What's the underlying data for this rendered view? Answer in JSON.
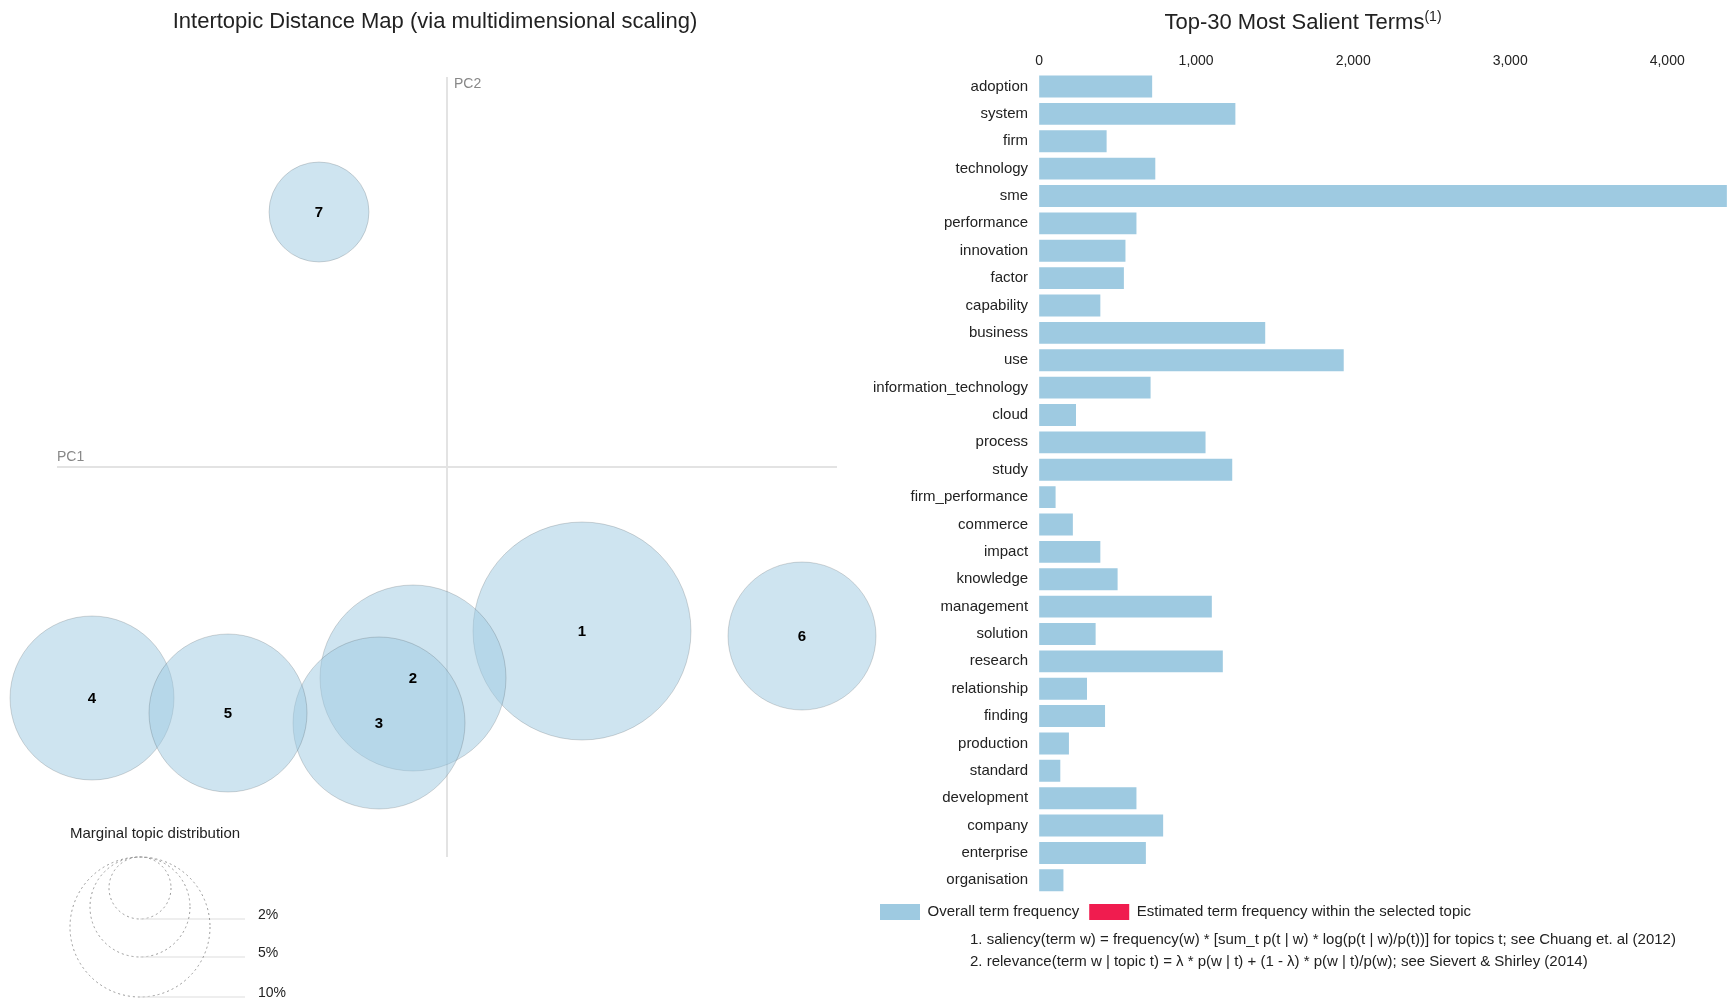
{
  "chart_data": [
    {
      "type": "other",
      "title": "Intertopic Distance Map (via multidimensional scaling)",
      "xlabel": "PC1",
      "ylabel": "PC2",
      "legend_title": "Marginal topic distribution",
      "annotations": [
        "1",
        "2",
        "3",
        "4",
        "5",
        "6",
        "7",
        "2%",
        "5%",
        "10%"
      ]
    },
    {
      "type": "bar",
      "orientation": "horizontal",
      "title": "Top-30 Most Salient Terms$^{(1)}$",
      "legend": "bottom",
      "categories": [
        "adoption",
        "system",
        "firm",
        "technology",
        "sme",
        "performance",
        "innovation",
        "factor",
        "capability",
        "business",
        "use",
        "information_technology",
        "cloud",
        "process",
        "study",
        "firm_performance",
        "commerce",
        "impact",
        "knowledge",
        "management",
        "solution",
        "research",
        "relationship",
        "finding",
        "production",
        "standard",
        "development",
        "company",
        "enterprise",
        "organisation"
      ],
      "series": [
        {
          "name": "Overall term frequency",
          "color": "#9ecae1",
          "values": [
            720,
            1250,
            430,
            740,
            4380,
            620,
            550,
            540,
            390,
            1440,
            1940,
            710,
            235,
            1060,
            1230,
            105,
            215,
            390,
            500,
            1100,
            360,
            1170,
            305,
            420,
            190,
            135,
            620,
            790,
            680,
            155
          ]
        },
        {
          "name": "Estimated term frequency within the selected topic",
          "color": "#f01c4f",
          "values": [
            null,
            null,
            null,
            null,
            null,
            null,
            null,
            null,
            null,
            null,
            null,
            null,
            null,
            null,
            null,
            null,
            null,
            null,
            null,
            null,
            null,
            null,
            null,
            null,
            null,
            null,
            null,
            null,
            null,
            null
          ]
        }
      ],
      "xlim": [
        0,
        4400
      ],
      "xticks": [
        0,
        {
          "value": 1000,
          "label": "1,000"
        },
        {
          "value": 2000,
          "label": "2,000"
        },
        {
          "value": 3000,
          "label": "3,000"
        },
        {
          "value": 4000,
          "label": "4,000"
        }
      ],
      "annotations": [
        "1. saliency(term w) = frequency(w) * [sum_t p(t | w) * log(p(t | w)/p(t))] for topics t; see Chuang et. al (2012)",
        "2. relevance(term w | topic t) = λ * p(w | t) + (1 - λ) * p(w | t)/p(w); see Sievert & Shirley (2014)"
      ]
    }
  ]
}
